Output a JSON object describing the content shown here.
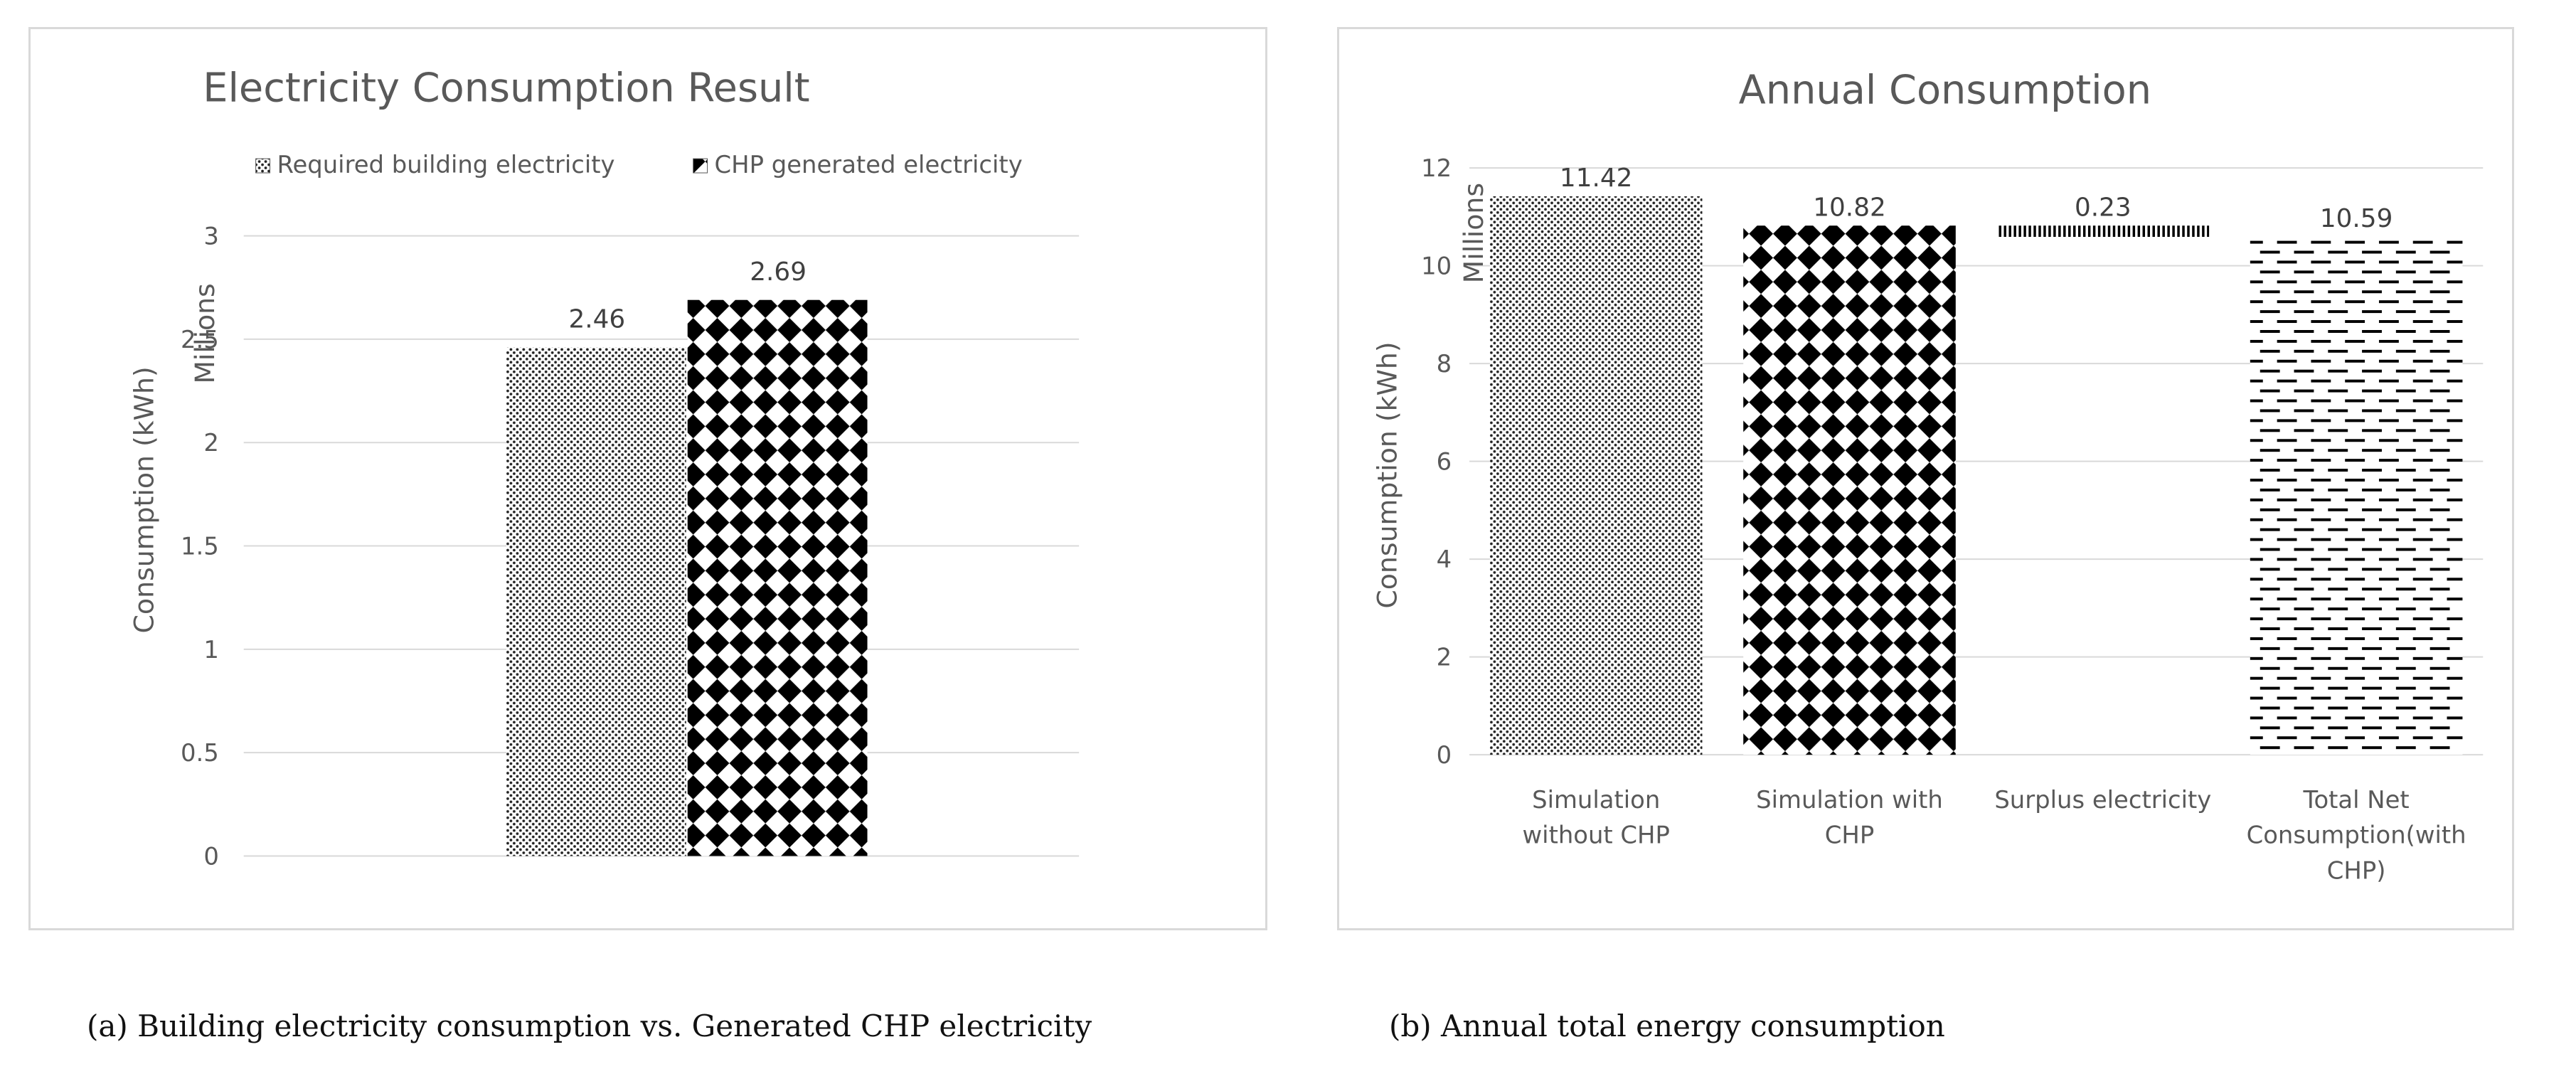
{
  "chart_data": [
    {
      "type": "bar",
      "title": "Electricity Consumption Result",
      "ylabel": "Consumption (kWh)",
      "yunit": "Millions",
      "ylim": [
        0,
        3
      ],
      "yticks": [
        "0",
        "0.5",
        "1",
        "1.5",
        "2",
        "2.5",
        "3"
      ],
      "legend_position": "top",
      "grid": true,
      "categories": [
        ""
      ],
      "series": [
        {
          "name": "Required building electricity",
          "values": [
            2.46
          ],
          "label": "2.46",
          "pattern": "dots"
        },
        {
          "name": "CHP generated electricity",
          "values": [
            2.69
          ],
          "label": "2.69",
          "pattern": "diamonds"
        }
      ]
    },
    {
      "type": "bar",
      "title": "Annual Consumption",
      "ylabel": "Consumption (kWh)",
      "yunit": "Millions",
      "ylim": [
        0,
        12
      ],
      "yticks": [
        "0",
        "2",
        "4",
        "6",
        "8",
        "10",
        "12"
      ],
      "grid": true,
      "categories": [
        [
          "Simulation",
          "without CHP"
        ],
        [
          "Simulation with",
          "CHP"
        ],
        [
          "Surplus electricity"
        ],
        [
          "Total Net",
          "Consumption(with",
          "CHP)"
        ]
      ],
      "values": [
        11.42,
        10.82,
        0.23,
        10.59
      ],
      "labels": [
        "11.42",
        "10.82",
        "0.23",
        "10.59"
      ],
      "bases": [
        0,
        0,
        10.59,
        0
      ],
      "patterns": [
        "dots",
        "diamonds",
        "vstripes",
        "dashes"
      ]
    }
  ],
  "captions": {
    "a": "(a)  Building electricity consumption vs. Generated CHP electricity",
    "b": "(b)  Annual total energy consumption"
  }
}
